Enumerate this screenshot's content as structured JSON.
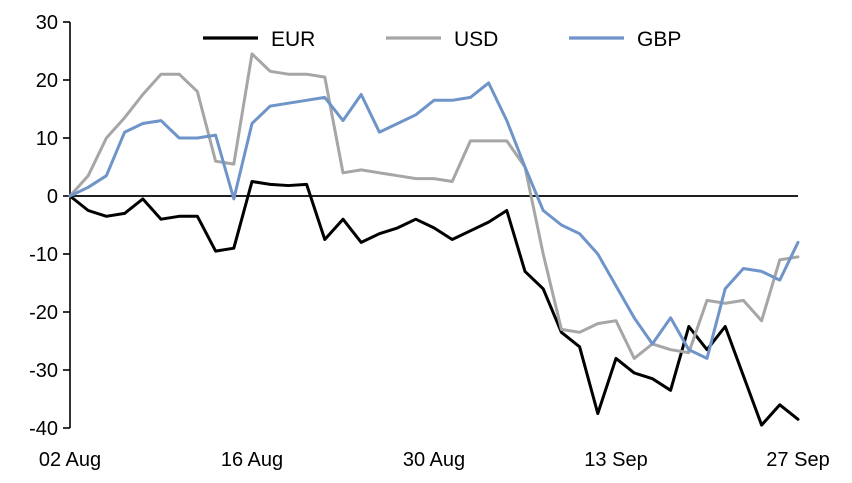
{
  "chart_data": {
    "type": "line",
    "title": "",
    "xlabel": "",
    "ylabel": "",
    "ylim": [
      -40,
      30
    ],
    "y_ticks": [
      30,
      20,
      10,
      0,
      -10,
      -20,
      -30,
      -40
    ],
    "x_tick_labels": [
      "02 Aug",
      "16 Aug",
      "30 Aug",
      "13 Sep",
      "27 Sep"
    ],
    "x_tick_indices": [
      0,
      10,
      20,
      30,
      40
    ],
    "grid": false,
    "zero_line": true,
    "legend_position": "top",
    "axis_color": "#000000",
    "background_color": "#ffffff",
    "categories": [
      "02 Aug",
      "03 Aug",
      "04 Aug",
      "05 Aug",
      "06 Aug",
      "09 Aug",
      "10 Aug",
      "11 Aug",
      "12 Aug",
      "13 Aug",
      "16 Aug",
      "17 Aug",
      "18 Aug",
      "19 Aug",
      "20 Aug",
      "23 Aug",
      "24 Aug",
      "25 Aug",
      "26 Aug",
      "27 Aug",
      "30 Aug",
      "31 Aug",
      "01 Sep",
      "02 Sep",
      "03 Sep",
      "06 Sep",
      "07 Sep",
      "08 Sep",
      "09 Sep",
      "10 Sep",
      "13 Sep",
      "14 Sep",
      "15 Sep",
      "16 Sep",
      "17 Sep",
      "20 Sep",
      "21 Sep",
      "22 Sep",
      "23 Sep",
      "24 Sep",
      "27 Sep"
    ],
    "series": [
      {
        "name": "EUR",
        "color": "#000000",
        "values": [
          0,
          -2.5,
          -3.5,
          -3,
          -0.5,
          -4,
          -3.5,
          -3.5,
          -9.5,
          -9,
          2.5,
          2,
          1.8,
          2,
          -7.5,
          -4,
          -8,
          -6.5,
          -5.5,
          -4,
          -5.5,
          -7.5,
          -6,
          -4.5,
          -2.5,
          -13,
          -16,
          -23.5,
          -26,
          -37.5,
          -28,
          -30.5,
          -31.5,
          -33.5,
          -22.5,
          -26.5,
          -22.5,
          -31,
          -39.5,
          -36,
          -38.5
        ]
      },
      {
        "name": "USD",
        "color": "#a6a6a6",
        "values": [
          0,
          3.5,
          10,
          13.5,
          17.5,
          21,
          21,
          18,
          6,
          5.5,
          24.5,
          21.5,
          21,
          21,
          20.5,
          4,
          4.5,
          4,
          3.5,
          3,
          3,
          2.5,
          9.5,
          9.5,
          9.5,
          5,
          -10,
          -23,
          -23.5,
          -22,
          -21.5,
          -28,
          -25.5,
          -26.5,
          -27,
          -18,
          -18.5,
          -18,
          -21.5,
          -11,
          -10.5
        ]
      },
      {
        "name": "GBP",
        "color": "#6f94c9",
        "values": [
          0,
          1.5,
          3.5,
          11,
          12.5,
          13,
          10,
          10,
          10.5,
          -0.5,
          12.5,
          15.5,
          16,
          16.5,
          17,
          13,
          17.5,
          11,
          12.5,
          14,
          16.5,
          16.5,
          17,
          19.5,
          13,
          5,
          -2.5,
          -5,
          -6.5,
          -10,
          -15.5,
          -21,
          -25.5,
          -21,
          -26.5,
          -28,
          -16,
          -12.5,
          -13,
          -14.5,
          -8
        ]
      }
    ]
  }
}
